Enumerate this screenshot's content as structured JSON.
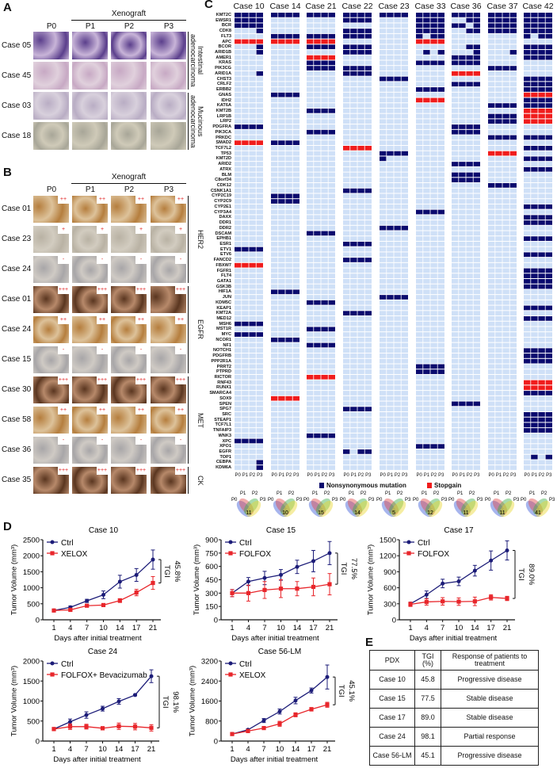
{
  "panel_labels": {
    "a": "A",
    "b": "B",
    "c": "C",
    "d": "D",
    "e": "E"
  },
  "panel_a": {
    "xenograft": "Xenograft",
    "columns": [
      "P0",
      "P1",
      "P2",
      "P3"
    ],
    "rows": [
      "Case 05",
      "Case 45",
      "Case 03",
      "Case 18"
    ],
    "groups": [
      "Intestinal adenocarcinoma",
      "Mucinous adenocarcinoma"
    ]
  },
  "panel_b": {
    "xenograft": "Xenograft",
    "columns": [
      "P0",
      "P1",
      "P2",
      "P3"
    ],
    "rows": [
      {
        "case": "Case 01",
        "score": "++",
        "marker": "HER2"
      },
      {
        "case": "Case 23",
        "score": "+",
        "marker": "HER2"
      },
      {
        "case": "Case 24",
        "score": "-",
        "marker": "HER2"
      },
      {
        "case": "Case 01",
        "score": "+++",
        "marker": "EGFR"
      },
      {
        "case": "Case 24",
        "score": "++",
        "marker": "EGFR"
      },
      {
        "case": "Case 15",
        "score": "-",
        "marker": "EGFR"
      },
      {
        "case": "Case 30",
        "score": "+++",
        "marker": "MET"
      },
      {
        "case": "Case 58",
        "score": "++",
        "marker": "MET"
      },
      {
        "case": "Case 36",
        "score": "-",
        "marker": "MET"
      },
      {
        "case": "Case 35",
        "score": "+++",
        "marker": "CK"
      }
    ],
    "groups": [
      "HER2",
      "EGFR",
      "MET",
      "CK"
    ]
  },
  "panel_c": {
    "colors": {
      "none": "#cfe0f7",
      "nonsynonymous": "#0a0a6e",
      "stopgain": "#f01c1c"
    },
    "columns": [
      "P0",
      "P1",
      "P2",
      "P3"
    ],
    "legend": {
      "nonsynonymous": "Nonsynonymous mutation",
      "stopgain": "Stopgain"
    },
    "venn_labels": [
      "P0",
      "P1",
      "P2",
      "P3"
    ],
    "genes": [
      "KMT2C",
      "EWSR1",
      "BCR",
      "CDK8",
      "FLT3",
      "APC",
      "BCOR",
      "ARID1B",
      "AMER1",
      "KRAS",
      "PIK3CG",
      "ARID1A",
      "CHST3",
      "CRLF2",
      "ERBB2",
      "GNAS",
      "IDH2",
      "KAT6A",
      "KMT2B",
      "LRP1B",
      "LRP2",
      "PDGFRA",
      "PIK3CA",
      "PRKDC",
      "SMAD2",
      "TCF7L2",
      "TP53",
      "KMT2D",
      "ARID2",
      "ATRX",
      "BLM",
      "C8orf34",
      "CDK12",
      "CSNK1A1",
      "CYP2C19",
      "CYP2C9",
      "CYP2E1",
      "CYP3A4",
      "DAXX",
      "DDR1",
      "DDR2",
      "DSCAM",
      "EPHB1",
      "ESR1",
      "ETV1",
      "ETV6",
      "FANCD2",
      "FBXW7",
      "FGFR1",
      "FLT4",
      "GATA1",
      "GSK3B",
      "HIF1A",
      "JUN",
      "KDM5C",
      "KEAP1",
      "KMT2A",
      "MED12",
      "MSH6",
      "MST1R",
      "MYC",
      "NCOR1",
      "NF1",
      "NOTCH1",
      "PDGFRB",
      "PPP2R1A",
      "PRRT2",
      "PTPRD",
      "RICTOR",
      "RNF43",
      "RUNX1",
      "SMARCA4",
      "SOX9",
      "SPEN",
      "SPG7",
      "SRC",
      "STEAP1",
      "TCF7L1",
      "TNFAIP3",
      "WNK3",
      "XPC",
      "XPO1",
      "EGFR",
      "TOP1",
      "CEBPA",
      "KDM6A"
    ],
    "cases": [
      {
        "name": "Case 10",
        "venn_center": "11",
        "mutations": {
          "KMT2C": "NNNN",
          "EWSR1": "NNNN",
          "BCR": "NNNN",
          "CDK8": "...N",
          "APC": "SSSS",
          "BCOR": "...N",
          "ARID1B": "...N",
          "ARID1A": "...N",
          "PDGFRA": "NNNN",
          "SMAD2": "SSSS",
          "ETV1": "NNNN",
          "FBXW7": "SSSS",
          "MSH6": "NNNN",
          "MYC": "NNNN",
          "XPC": "NNNN",
          "CEBPA": "...N",
          "KDM6A": "...N"
        }
      },
      {
        "name": "Case 14",
        "venn_center": "10",
        "mutations": {
          "KMT2C": "NNNN",
          "FLT3": "NNNN",
          "APC": "SSSS",
          "GNAS": "NNNN",
          "SMAD2": "NNNN",
          "CYP2C19": "NNNN",
          "CYP2C9": "NNNN",
          "HIF1A": "NNNN",
          "NCOR1": "NNNN",
          "SOX9": "SSSS"
        }
      },
      {
        "name": "Case 21",
        "venn_center": "15",
        "mutations": {
          "KMT2C": "NNNN",
          "FLT3": "NNNN",
          "APC": "SSSS",
          "BCOR": "NNNN",
          "AMER1": "SSSS",
          "KRAS": "NNNN",
          "PIK3CG": "NNNN",
          "KMT2B": "NNNN",
          "PIK3CA": "NNNN",
          "DSCAM": "NNNN",
          "KDM5C": "NNNN",
          "MST1R": "NNNN",
          "NF1": "NNNN",
          "RICTOR": "SSSS",
          "WNK3": "NNNN"
        }
      },
      {
        "name": "Case 22",
        "venn_center": "14",
        "mutations": {
          "KMT2C": "NNNN",
          "EWSR1": "NNNN",
          "CDK8": "NNNN",
          "FLT3": "NNNN",
          "BCOR": "NNNN",
          "ARID1B": "NNNN",
          "PIK3CG": "NNNN",
          "ARID1A": "NNNN",
          "TCF7L2": "SSSS",
          "CSNK1A1": "NNNN",
          "ESR1": "NNNN",
          "FANCD2": "NNNN",
          "KMT2A": "NNNN",
          "SPG7": "NNNN",
          "EGFR": "N.NN"
        }
      },
      {
        "name": "Case 23",
        "venn_center": "5",
        "mutations": {
          "KMT2C": "NNNN",
          "CHST3": "NNNN",
          "TP53": "NNNN",
          "KMT2D": "N...",
          "DDR2": "NNNN",
          "JUN": "NNNN"
        }
      },
      {
        "name": "Case 33",
        "venn_center": "12",
        "mutations": {
          "KMT2C": "NNNN",
          "EWSR1": "NNNN",
          "BCR": "NNNN",
          "CDK8": "NNNN",
          "FLT3": "N.NN",
          "APC": "SSSS",
          "ARID1B": ".N.N",
          "KRAS": "NNNN",
          "ERBB2": "NNNN",
          "IDH2": "SSSS",
          "CYP3A4": "NNNN",
          "PRRT2": "NNNN",
          "PTPRD": "NNNN",
          "XPO1": "NNNN"
        }
      },
      {
        "name": "Case 36",
        "venn_center": "11",
        "mutations": {
          "KMT2C": "NNNN",
          "EWSR1": "..NN",
          "BCR": "NN.N",
          "CDK8": "..NN",
          "BCOR": "..NN",
          "ARID1B": "...N",
          "AMER1": "NNNN",
          "KRAS": "NNNN",
          "ARID1A": "SSSS",
          "CRLF2": "NNNN",
          "PDGFRA": "NNNN",
          "PIK3CA": "NNNN",
          "ARID2": "NNNN",
          "BLM": "NNNN",
          "C8orf34": "NNNN",
          "SPEN": "NNNN"
        }
      },
      {
        "name": "Case 37",
        "venn_center": "11",
        "mutations": {
          "KMT2C": "NNNN",
          "EWSR1": "NNNN",
          "BCR": "NNNN",
          "CDK8": "NNNN",
          "ARID1B": "...N",
          "PIK3CG": "NNNN",
          "KAT6A": "NNNN",
          "LRP1B": "NNNN",
          "LRP2": "NNNN",
          "PRKDC": "NNNN",
          "TP53": "SSSS",
          "CDK12": "NNNN"
        }
      },
      {
        "name": "Case 42",
        "venn_center": "41",
        "mutations": {
          "KMT2C": "NNNN",
          "EWSR1": "NNNN",
          "BCR": "NNNN",
          "CDK8": "NNNN",
          "FLT3": "N.NN",
          "BCOR": "NNNN",
          "ARID1B": "NNNN",
          "AMER1": "NNNN",
          "CHST3": "NNNN",
          "CRLF2": "NNNN",
          "ERBB2": "NNNN",
          "GNAS": "SSSS",
          "IDH2": "NNNN",
          "KAT6A": "NNNN",
          "KMT2B": "SSSS",
          "LRP1B": "SSSS",
          "LRP2": "SSSS",
          "PRKDC": "NNNN",
          "TCF7L2": "NNNN",
          "KMT2D": "NNNN",
          "ATRX": "NNNN",
          "CYP2E1": "NNNN",
          "DAXX": "NNNN",
          "DDR1": "NNNN",
          "EPHB1": "NNNN",
          "ETV6": "NNNN",
          "FGFR1": "NNNN",
          "FLT4": "NNNN",
          "GATA1": "NNNN",
          "GSK3B": "NNNN",
          "KEAP1": "NNNN",
          "MED12": "NNNN",
          "NOTCH1": "NNNN",
          "PDGFRB": "NNNN",
          "PPP2R1A": "NNNN",
          "RNF43": "SSSS",
          "RUNX1": "SSSS",
          "SMARCA4": "NNNN",
          "SRC": "NNNN",
          "STEAP1": "NNNN",
          "TCF7L1": "NNNN",
          "TNFAIP3": "NNNN",
          "TOP1": ".N.N"
        }
      }
    ]
  },
  "chart_colors": {
    "ctrl": "#1c1c78",
    "treatment": "#e8262b"
  },
  "chart_data": [
    {
      "type": "line",
      "title": "Case 10",
      "x": [
        1,
        4,
        7,
        10,
        14,
        17,
        21
      ],
      "xlabel": "Days after initial treatment",
      "ylabel": "Tumor Volume (mm³)",
      "ylim": [
        0,
        2500
      ],
      "yticks": [
        0,
        500,
        1000,
        1500,
        2000,
        2500
      ],
      "series": [
        {
          "name": "Ctrl",
          "values": [
            290,
            390,
            590,
            780,
            1190,
            1400,
            1880
          ],
          "errors": [
            20,
            40,
            50,
            120,
            200,
            200,
            300
          ]
        },
        {
          "name": "XELOX",
          "values": [
            290,
            310,
            440,
            460,
            600,
            850,
            1150
          ],
          "errors": [
            30,
            30,
            40,
            30,
            60,
            100,
            200
          ]
        }
      ],
      "tgi_label": "TGI",
      "tgi_value": "45.8%"
    },
    {
      "type": "line",
      "title": "Case 15",
      "x": [
        1,
        4,
        7,
        10,
        14,
        17,
        21
      ],
      "xlabel": "Days after initial treatment",
      "ylabel": "Tumor Volume (mm³)",
      "ylim": [
        0,
        900
      ],
      "yticks": [
        0,
        150,
        300,
        450,
        600,
        750,
        900
      ],
      "series": [
        {
          "name": "Ctrl",
          "values": [
            300,
            430,
            470,
            505,
            595,
            660,
            750
          ],
          "errors": [
            40,
            45,
            75,
            60,
            75,
            120,
            130
          ]
        },
        {
          "name": "FOLFOX",
          "values": [
            300,
            300,
            335,
            350,
            350,
            370,
            400
          ],
          "errors": [
            40,
            90,
            95,
            100,
            80,
            100,
            120
          ]
        }
      ],
      "tgi_label": "TGI",
      "tgi_value": "77.5%"
    },
    {
      "type": "line",
      "title": "Case 17",
      "x": [
        1,
        4,
        7,
        10,
        14,
        17,
        21
      ],
      "xlabel": "Days after initial treatment",
      "ylabel": "Tumor Volume (mm³)",
      "ylim": [
        0,
        1500
      ],
      "yticks": [
        0,
        300,
        600,
        900,
        1200,
        1500
      ],
      "series": [
        {
          "name": "Ctrl",
          "values": [
            300,
            470,
            680,
            720,
            920,
            1110,
            1300
          ],
          "errors": [
            30,
            70,
            80,
            80,
            100,
            180,
            180
          ]
        },
        {
          "name": "FOLFOX",
          "values": [
            290,
            335,
            345,
            340,
            345,
            420,
            400
          ],
          "errors": [
            40,
            60,
            70,
            70,
            80,
            50,
            40
          ]
        }
      ],
      "tgi_label": "TGI",
      "tgi_value": "89.0%"
    },
    {
      "type": "line",
      "title": "Case 24",
      "x": [
        1,
        4,
        7,
        10,
        14,
        17,
        21
      ],
      "xlabel": "Days after initial treatment",
      "ylabel": "Tumor Volume (mm³)",
      "ylim": [
        0,
        2000
      ],
      "yticks": [
        0,
        500,
        1000,
        1500,
        2000
      ],
      "series": [
        {
          "name": "Ctrl",
          "values": [
            300,
            480,
            650,
            810,
            990,
            1150,
            1620
          ],
          "errors": [
            30,
            70,
            80,
            60,
            70,
            20,
            160
          ]
        },
        {
          "name": "FOLFOX+ Bevacizumab",
          "values": [
            300,
            360,
            360,
            320,
            370,
            360,
            330
          ],
          "errors": [
            40,
            70,
            60,
            40,
            80,
            80,
            80
          ]
        }
      ],
      "tgi_label": "TGI",
      "tgi_value": "98.1%"
    },
    {
      "type": "line",
      "title": "Case 56-LM",
      "x": [
        1,
        4,
        7,
        10,
        14,
        17,
        21
      ],
      "xlabel": "Days after initial treatment",
      "ylabel": "Tumor Volume (mm³)",
      "ylim": [
        0,
        3200
      ],
      "yticks": [
        0,
        800,
        1600,
        2400,
        3200
      ],
      "series": [
        {
          "name": "Ctrl",
          "values": [
            280,
            450,
            820,
            1180,
            1620,
            2020,
            2560
          ],
          "errors": [
            30,
            40,
            80,
            100,
            130,
            100,
            480
          ]
        },
        {
          "name": "XELOX",
          "values": [
            280,
            400,
            520,
            690,
            1050,
            1270,
            1450
          ],
          "errors": [
            40,
            50,
            40,
            100,
            80,
            70,
            100
          ]
        }
      ],
      "tgi_label": "TGI",
      "tgi_value": "45.1%"
    }
  ],
  "table": {
    "headers": [
      "PDX",
      "TGI (%)",
      "Response of patients to treatment"
    ],
    "rows": [
      [
        "Case 10",
        "45.8",
        "Progressive disease"
      ],
      [
        "Case 15",
        "77.5",
        "Stable disease"
      ],
      [
        "Case 17",
        "89.0",
        "Stable disease"
      ],
      [
        "Case 24",
        "98.1",
        "Partial response"
      ],
      [
        "Case 56-LM",
        "45.1",
        "Progressive disease"
      ]
    ]
  }
}
